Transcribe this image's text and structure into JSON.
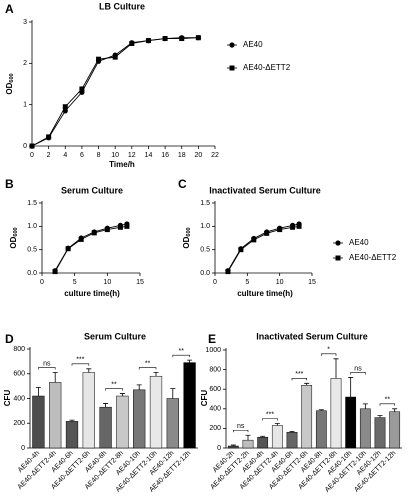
{
  "chart_data": [
    {
      "type": "line",
      "panel": "A",
      "title": "LB Culture",
      "x_label": "Time/h",
      "y_label": "OD",
      "y_label_subscript": "600",
      "x": [
        0,
        2,
        4,
        6,
        8,
        10,
        12,
        14,
        16,
        18,
        20
      ],
      "series": [
        {
          "name": "AE40",
          "color": "#000000",
          "marker": "circle",
          "values": [
            0,
            0.2,
            0.85,
            1.3,
            2.05,
            2.2,
            2.5,
            2.55,
            2.6,
            2.62,
            2.62
          ]
        },
        {
          "name": "AE40-ΔETT2",
          "color": "#000000",
          "marker": "square",
          "values": [
            0,
            0.22,
            0.95,
            1.38,
            2.1,
            2.15,
            2.48,
            2.55,
            2.6,
            2.6,
            2.62
          ]
        }
      ],
      "xlim": [
        0,
        22
      ],
      "xticks": [
        0,
        2,
        4,
        6,
        8,
        10,
        12,
        14,
        16,
        18,
        20,
        22
      ],
      "ylim": [
        0,
        3
      ],
      "yticks": [
        0,
        1,
        2,
        3
      ],
      "legend": true
    },
    {
      "type": "line",
      "panel": "B",
      "title": "Serum Culture",
      "x_label": "culture time(h)",
      "y_label": "OD",
      "y_label_subscript": "600",
      "x": [
        2,
        4,
        6,
        8,
        10,
        12,
        13
      ],
      "series": [
        {
          "color": "#000000",
          "marker": "circle",
          "values": [
            0.05,
            0.53,
            0.75,
            0.88,
            0.96,
            1.02,
            1.05
          ]
        },
        {
          "color": "#000000",
          "marker": "square",
          "values": [
            0.03,
            0.52,
            0.72,
            0.86,
            0.93,
            0.98,
            1.0
          ]
        }
      ],
      "xlim": [
        0,
        15
      ],
      "xticks": [
        0,
        5,
        10,
        15
      ],
      "ylim": [
        0,
        1.5
      ],
      "yticks": [
        {
          "value": 0,
          "label": "0.0"
        },
        0.5,
        {
          "value": 1,
          "label": "1.0"
        },
        1.5
      ],
      "legend": false
    },
    {
      "type": "line",
      "panel": "C",
      "title": "Inactivated Serum Culture",
      "x_label": "culture time(h)",
      "y_label": "OD",
      "y_label_subscript": "600",
      "x": [
        2,
        4,
        6,
        8,
        10,
        12,
        13
      ],
      "series": [
        {
          "name": "AE40",
          "color": "#000000",
          "marker": "circle",
          "values": [
            0.05,
            0.52,
            0.74,
            0.88,
            0.96,
            1.02,
            1.05
          ]
        },
        {
          "name": "AE40-ΔETT2",
          "color": "#000000",
          "marker": "square",
          "values": [
            0.03,
            0.5,
            0.71,
            0.85,
            0.93,
            0.98,
            1.0
          ]
        }
      ],
      "xlim": [
        0,
        15
      ],
      "xticks": [
        0,
        5,
        10,
        15
      ],
      "ylim": [
        0,
        1.5
      ],
      "yticks": [
        {
          "value": 0,
          "label": "0.0"
        },
        0.5,
        {
          "value": 1,
          "label": "1.0"
        },
        1.5
      ],
      "legend": true
    },
    {
      "type": "bar",
      "panel": "D",
      "title": "Serum Culture",
      "y_label": "CFU",
      "categories": [
        "AE40-4h",
        "AE40-ΔETT2-4h",
        "AE40-6h",
        "AE40-ΔETT2-6h",
        "AE40-8h",
        "AE40-ΔETT2-8h",
        "AE40-10h",
        "AE40-ΔETT2-10h",
        "AE40-12h",
        "AE40-ΔETT2-12h"
      ],
      "values": [
        420,
        530,
        215,
        610,
        330,
        420,
        470,
        580,
        400,
        690
      ],
      "errors": [
        70,
        80,
        10,
        30,
        30,
        20,
        40,
        30,
        80,
        20
      ],
      "colors": [
        "#4d4d4d",
        "#bdbdbd",
        "#555555",
        "#e6e6e6",
        "#666666",
        "#c8c8c8",
        "#777777",
        "#e8e8e8",
        "#8a8a8a",
        "#000000"
      ],
      "annotations": [
        "ns",
        "***",
        "**",
        "**",
        "**"
      ],
      "ylim": [
        0,
        800
      ],
      "yticks": [
        0,
        200,
        400,
        600,
        800
      ]
    },
    {
      "type": "bar",
      "panel": "E",
      "title": "Inactivated Serum Culture",
      "y_label": "CFU",
      "categories": [
        "AE40-2h",
        "AE40-ΔETT2-2h",
        "AE40-4h",
        "AE40-ΔETT2-4h",
        "AE40-6h",
        "AE40-ΔETT2-6h",
        "AE40-8h",
        "AE40-ΔETT2-8h",
        "AE40-10h",
        "AE40-ΔETT2-10h",
        "AE40-12h",
        "AE40-ΔETT2-12h"
      ],
      "values": [
        20,
        80,
        110,
        230,
        160,
        640,
        380,
        710,
        520,
        400,
        310,
        370
      ],
      "errors": [
        10,
        50,
        10,
        20,
        10,
        20,
        10,
        200,
        200,
        50,
        20,
        30
      ],
      "colors": [
        "#4d4d4d",
        "#bdbdbd",
        "#555555",
        "#e6e6e6",
        "#666666",
        "#c8c8c8",
        "#777777",
        "#e8e8e8",
        "#000000",
        "#8a8a8a",
        "#6a6a6a",
        "#9a9a9a"
      ],
      "annotations": [
        "ns",
        "***",
        "***",
        "*",
        "ns",
        "**"
      ],
      "ylim": [
        0,
        1000
      ],
      "yticks": [
        0,
        200,
        400,
        600,
        800,
        1000
      ]
    }
  ]
}
